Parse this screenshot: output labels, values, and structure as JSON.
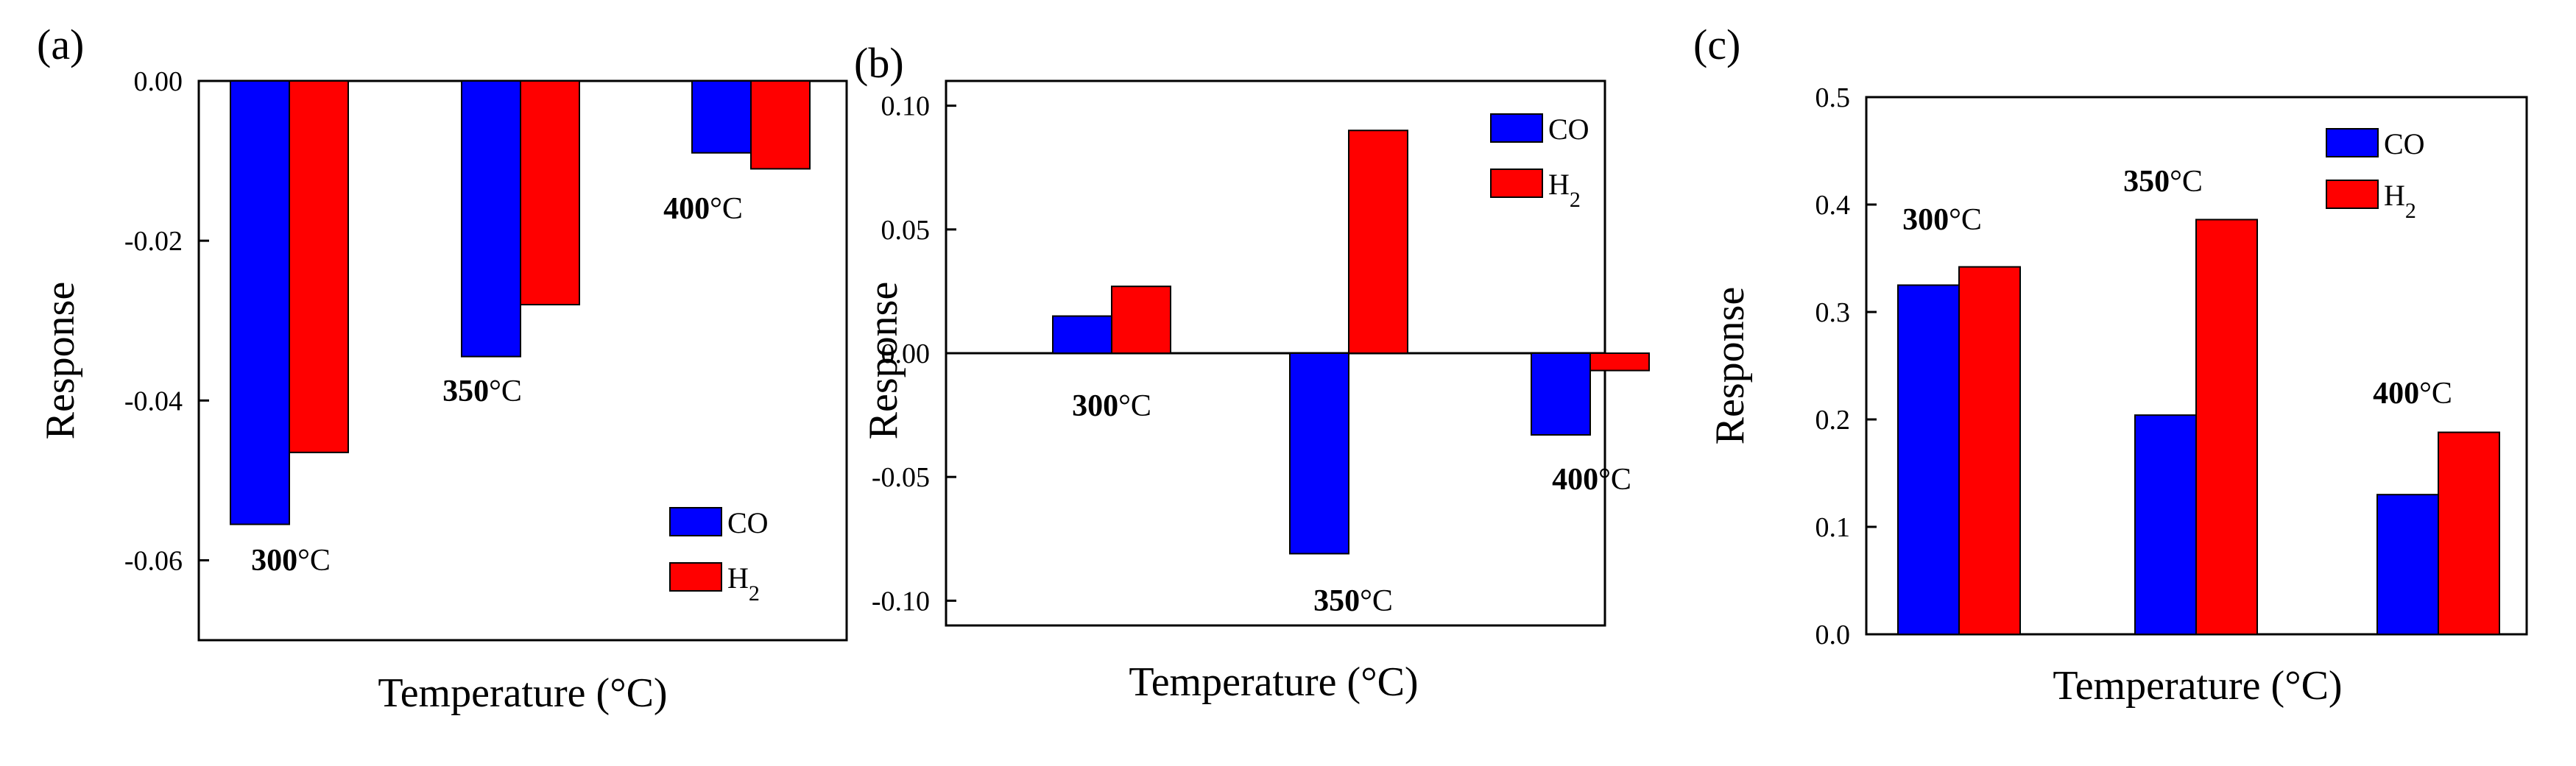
{
  "colors": {
    "CO": "#0000ff",
    "H2": "#ff0000",
    "axis": "#000000"
  },
  "chart_data": [
    {
      "type": "bar",
      "panel": "(a)",
      "categories": [
        "300°C",
        "350°C",
        "400°C"
      ],
      "series": [
        {
          "name": "CO",
          "values": [
            -0.0555,
            -0.0345,
            -0.009
          ]
        },
        {
          "name": "H2",
          "values": [
            -0.0465,
            -0.028,
            -0.011
          ]
        }
      ],
      "xlabel": "Temperature (°C)",
      "ylabel": "Response",
      "ylim": [
        -0.07,
        0.0
      ],
      "yticks": [
        "0.00",
        "-0.02",
        "-0.04",
        "-0.06"
      ],
      "annotations": [
        {
          "temp": "300",
          "unit": "°C"
        },
        {
          "temp": "350",
          "unit": "°C"
        },
        {
          "temp": "400",
          "unit": "°C"
        }
      ],
      "legend": {
        "placement": "bottom-right",
        "entries": [
          "CO",
          "H2"
        ]
      }
    },
    {
      "type": "bar",
      "panel": "(b)",
      "categories": [
        "300°C",
        "350°C",
        "400°C"
      ],
      "series": [
        {
          "name": "CO",
          "values": [
            0.015,
            -0.081,
            -0.033
          ]
        },
        {
          "name": "H2",
          "values": [
            0.027,
            0.09,
            -0.007
          ]
        }
      ],
      "xlabel": "Temperature (°C)",
      "ylabel": "Response",
      "ylim": [
        -0.11,
        0.11
      ],
      "yticks": [
        "0.10",
        "0.05",
        "0.00",
        "-0.05",
        "-0.10"
      ],
      "annotations": [
        {
          "temp": "300",
          "unit": "°C"
        },
        {
          "temp": "350",
          "unit": "°C"
        },
        {
          "temp": "400",
          "unit": "°C"
        }
      ],
      "legend": {
        "placement": "top-right",
        "entries": [
          "CO",
          "H2"
        ]
      }
    },
    {
      "type": "bar",
      "panel": "(c)",
      "categories": [
        "300°C",
        "350°C",
        "400°C"
      ],
      "series": [
        {
          "name": "CO",
          "values": [
            0.325,
            0.204,
            0.13
          ]
        },
        {
          "name": "H2",
          "values": [
            0.342,
            0.386,
            0.188
          ]
        }
      ],
      "xlabel": "Temperature (°C)",
      "ylabel": "Response",
      "ylim": [
        0.0,
        0.5
      ],
      "yticks": [
        "0.5",
        "0.4",
        "0.3",
        "0.2",
        "0.1",
        "0.0"
      ],
      "annotations": [
        {
          "temp": "300",
          "unit": "°C"
        },
        {
          "temp": "350",
          "unit": "°C"
        },
        {
          "temp": "400",
          "unit": "°C"
        }
      ],
      "legend": {
        "placement": "top-right",
        "entries": [
          "CO",
          "H2"
        ]
      }
    }
  ]
}
